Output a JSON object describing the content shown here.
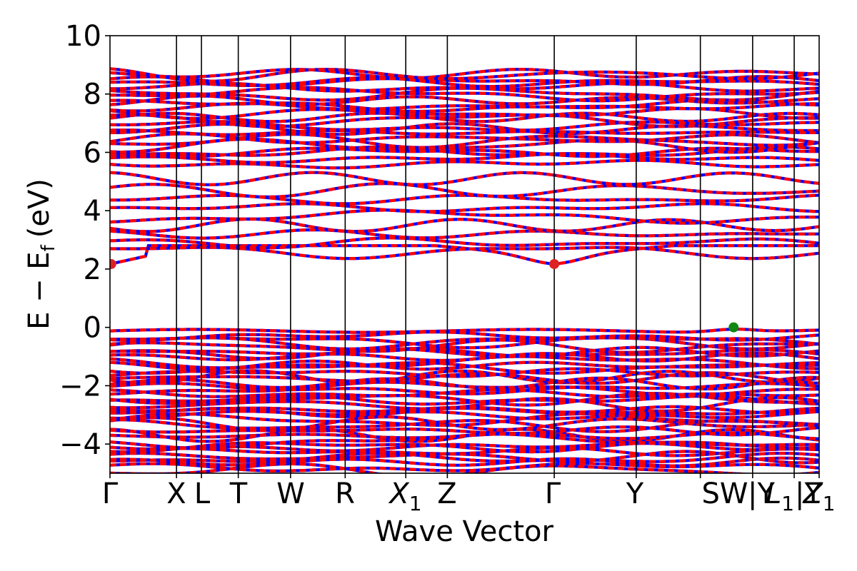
{
  "chart_data": {
    "type": "line",
    "title": "",
    "xlabel": "Wave Vector",
    "ylabel": "E − E",
    "ylabel_subscript": "f",
    "ylabel_unit": "(eV)",
    "ylim": [
      -5,
      10
    ],
    "yticks": [
      "−4",
      "−2",
      "0",
      "2",
      "4",
      "6",
      "8",
      "10"
    ],
    "ytick_values": [
      -4,
      -2,
      0,
      2,
      4,
      6,
      8,
      10
    ],
    "grid": false,
    "legend": "none",
    "kpath": [
      {
        "label": "Γ",
        "sub": ""
      },
      {
        "label": "X",
        "sub": ""
      },
      {
        "label": "L",
        "sub": ""
      },
      {
        "label": "T",
        "sub": ""
      },
      {
        "label": "W",
        "sub": ""
      },
      {
        "label": "R",
        "sub": ""
      },
      {
        "label": "X",
        "sub": "1"
      },
      {
        "label": "Z",
        "sub": ""
      },
      {
        "label": "Γ",
        "sub": ""
      },
      {
        "label": "Y",
        "sub": ""
      },
      {
        "label": "SW",
        "sub": ""
      },
      {
        "label": "|Y",
        "sub": ""
      },
      {
        "label": "L",
        "sub": "1"
      },
      {
        "label": "|Y",
        "sub": ""
      },
      {
        "label": "Z",
        "sub": "1"
      }
    ],
    "kpoint_positions": [
      0,
      0.56,
      0.77,
      1.08,
      1.52,
      1.98,
      2.49,
      2.84,
      3.74,
      4.43,
      4.97,
      5.41,
      5.76,
      5.97
    ],
    "colors": {
      "band_primary": "#ff0000",
      "band_secondary": "#0000ff",
      "cbm_marker": "#dd2222",
      "vbm_marker": "#118811"
    },
    "cbm": {
      "k": 3.74,
      "energy": 2.17
    },
    "vbm": {
      "k": 5.25,
      "energy": 0.0
    },
    "conduction_bands_approx": [
      2.3,
      2.6,
      2.9,
      3.2,
      3.5,
      3.8,
      4.1,
      4.4,
      4.7,
      5.1,
      5.6,
      6.0,
      6.4,
      6.8,
      7.2,
      7.6,
      8.0,
      8.4,
      8.7
    ],
    "valence_bands_approx": [
      -0.1,
      -0.5,
      -0.9,
      -1.3,
      -1.7,
      -2.1,
      -2.5,
      -2.9,
      -3.3,
      -3.7,
      -4.1,
      -4.5,
      -4.9
    ]
  }
}
